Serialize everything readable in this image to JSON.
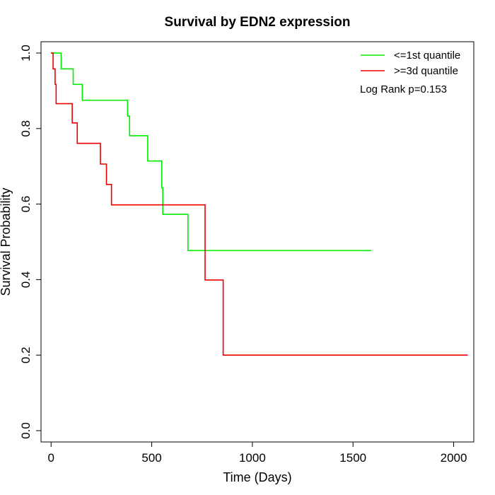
{
  "chart_data": {
    "type": "line",
    "title": "Survival by EDN2 expression",
    "xlabel": "Time (Days)",
    "ylabel": "Survival Probability",
    "xlim": [
      -50,
      2100
    ],
    "ylim": [
      -0.03,
      1.03
    ],
    "x_ticks": [
      0,
      500,
      1000,
      1500,
      2000
    ],
    "y_ticks": [
      0.0,
      0.2,
      0.4,
      0.6,
      0.8,
      1.0
    ],
    "x_tick_labels": [
      "0",
      "500",
      "1000",
      "1500",
      "2000"
    ],
    "y_tick_labels": [
      "0.0",
      "0.2",
      "0.4",
      "0.6",
      "0.8",
      "1.0"
    ],
    "grid": false,
    "legend_position": "top-right",
    "annotation": "Log Rank p=0.153",
    "series": [
      {
        "name": "<=1st quantile",
        "color": "#00ee00",
        "step": true,
        "x": [
          0,
          50,
          110,
          155,
          380,
          390,
          480,
          550,
          555,
          680,
          1590
        ],
        "y": [
          1.0,
          0.958,
          0.917,
          0.875,
          0.833,
          0.781,
          0.714,
          0.643,
          0.573,
          0.477,
          0.477
        ]
      },
      {
        "name": ">=3d quantile",
        "color": "#ee0000",
        "step": true,
        "x": [
          0,
          10,
          20,
          25,
          105,
          130,
          245,
          275,
          300,
          765,
          855,
          2070
        ],
        "y": [
          1.0,
          0.958,
          0.917,
          0.866,
          0.815,
          0.761,
          0.706,
          0.652,
          0.598,
          0.399,
          0.2,
          0.2
        ]
      }
    ]
  }
}
